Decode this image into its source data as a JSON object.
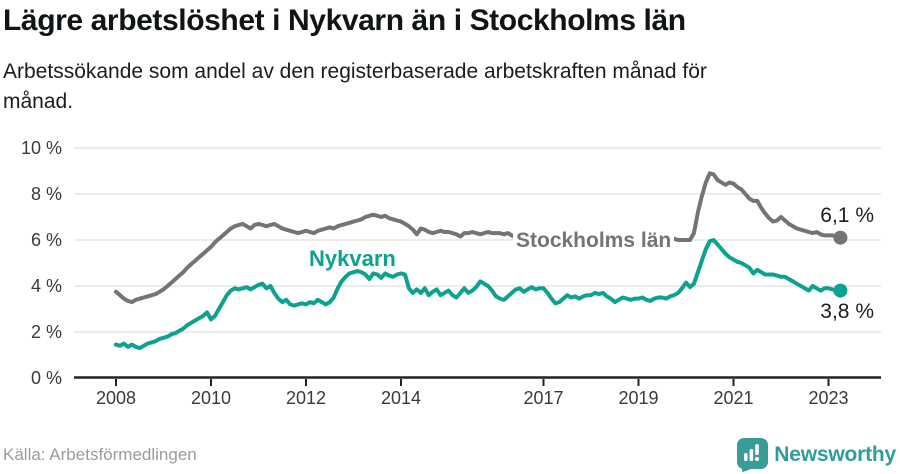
{
  "header": {
    "title": "Lägre arbetslöshet i Nykvarn än i Stockholms län",
    "subtitle_line1": "Arbetssökande som andel av den registerbaserade arbetskraften månad för",
    "subtitle_line2": "månad."
  },
  "footer": {
    "source": "Källa: Arbetsförmedlingen",
    "brand": "Newsworthy"
  },
  "colors": {
    "nykvarn_line": "#0da28f",
    "stockholm_line": "#737378",
    "gridline": "#e0e0e0",
    "axis": "#222222",
    "brand_teal": "#2f9e99",
    "tick_text": "#3a3a3a",
    "value_text": "#1c1c1c"
  },
  "chart_data": {
    "type": "line",
    "title": "Lägre arbetslöshet i Nykvarn än i Stockholms län",
    "subtitle": "Arbetssökande som andel av den registerbaserade arbetskraften månad för månad.",
    "unit": "%",
    "frequency": "monthly",
    "x_start": "2008-01",
    "x_end": "2023-04",
    "ylim": [
      0,
      10
    ],
    "grid": true,
    "legend_position": "inline-labels",
    "y_axis": {
      "ticks": [
        {
          "value": 0,
          "label": "0 %"
        },
        {
          "value": 2,
          "label": "2 %"
        },
        {
          "value": 4,
          "label": "4 %"
        },
        {
          "value": 6,
          "label": "6 %"
        },
        {
          "value": 8,
          "label": "8 %"
        },
        {
          "value": 10,
          "label": "10 %"
        }
      ]
    },
    "x_axis": {
      "ticks": [
        {
          "year": 2008,
          "label": "2008"
        },
        {
          "year": 2010,
          "label": "2010"
        },
        {
          "year": 2012,
          "label": "2012"
        },
        {
          "year": 2014,
          "label": "2014"
        },
        {
          "year": 2017,
          "label": "2017"
        },
        {
          "year": 2019,
          "label": "2019"
        },
        {
          "year": 2021,
          "label": "2021"
        },
        {
          "year": 2023,
          "label": "2023"
        }
      ]
    },
    "series": [
      {
        "id": "stockholms-lan",
        "name": "Stockholms län",
        "color": "#737378",
        "end_label": "6,1 %",
        "end_value": 6.1,
        "values": [
          3.75,
          3.6,
          3.45,
          3.35,
          3.3,
          3.4,
          3.45,
          3.5,
          3.55,
          3.6,
          3.65,
          3.75,
          3.85,
          4.0,
          4.15,
          4.3,
          4.45,
          4.6,
          4.8,
          4.95,
          5.1,
          5.25,
          5.4,
          5.55,
          5.7,
          5.9,
          6.05,
          6.2,
          6.35,
          6.5,
          6.6,
          6.65,
          6.7,
          6.6,
          6.5,
          6.65,
          6.7,
          6.65,
          6.6,
          6.65,
          6.7,
          6.6,
          6.5,
          6.45,
          6.4,
          6.35,
          6.3,
          6.35,
          6.4,
          6.35,
          6.3,
          6.4,
          6.45,
          6.5,
          6.55,
          6.5,
          6.6,
          6.65,
          6.7,
          6.75,
          6.8,
          6.85,
          6.9,
          7.0,
          7.05,
          7.1,
          7.05,
          7.0,
          7.05,
          6.95,
          6.9,
          6.85,
          6.8,
          6.7,
          6.6,
          6.45,
          6.25,
          6.5,
          6.45,
          6.35,
          6.3,
          6.35,
          6.4,
          6.35,
          6.35,
          6.3,
          6.25,
          6.15,
          6.3,
          6.3,
          6.35,
          6.3,
          6.25,
          6.3,
          6.35,
          6.3,
          6.3,
          6.3,
          6.25,
          6.3,
          6.2,
          6.1,
          6.15,
          6.1,
          6.05,
          6.0,
          6.0,
          6.05,
          6.05,
          6.1,
          6.05,
          6.0,
          6.0,
          6.05,
          6.1,
          6.05,
          6.0,
          6.0,
          6.05,
          6.0,
          6.0,
          6.05,
          6.0,
          5.95,
          6.0,
          6.05,
          6.0,
          5.95,
          6.0,
          6.0,
          6.05,
          6.0,
          6.0,
          6.05,
          6.0,
          6.0,
          6.05,
          6.1,
          6.05,
          6.0,
          6.0,
          6.05,
          6.0,
          6.0,
          6.0,
          6.0,
          6.3,
          7.2,
          7.9,
          8.5,
          8.9,
          8.85,
          8.6,
          8.5,
          8.4,
          8.5,
          8.45,
          8.3,
          8.2,
          8.0,
          7.8,
          7.7,
          7.7,
          7.4,
          7.15,
          6.95,
          6.8,
          6.85,
          7.0,
          6.85,
          6.7,
          6.6,
          6.5,
          6.45,
          6.4,
          6.35,
          6.3,
          6.35,
          6.25,
          6.2,
          6.2,
          6.2,
          6.15,
          6.1
        ]
      },
      {
        "id": "nykvarn",
        "name": "Nykvarn",
        "color": "#0da28f",
        "end_label": "3,8 %",
        "end_value": 3.8,
        "values": [
          1.45,
          1.4,
          1.5,
          1.35,
          1.45,
          1.35,
          1.3,
          1.4,
          1.5,
          1.55,
          1.6,
          1.7,
          1.75,
          1.8,
          1.9,
          1.95,
          2.05,
          2.15,
          2.3,
          2.4,
          2.5,
          2.6,
          2.7,
          2.85,
          2.55,
          2.7,
          3.0,
          3.3,
          3.6,
          3.8,
          3.9,
          3.85,
          3.9,
          3.95,
          3.85,
          3.95,
          4.05,
          4.1,
          3.9,
          4.0,
          3.7,
          3.45,
          3.3,
          3.4,
          3.2,
          3.15,
          3.2,
          3.25,
          3.2,
          3.3,
          3.25,
          3.4,
          3.3,
          3.2,
          3.3,
          3.5,
          3.9,
          4.2,
          4.4,
          4.55,
          4.6,
          4.65,
          4.6,
          4.5,
          4.3,
          4.55,
          4.5,
          4.35,
          4.55,
          4.45,
          4.4,
          4.5,
          4.55,
          4.5,
          3.9,
          3.7,
          3.85,
          3.7,
          3.9,
          3.6,
          3.75,
          3.85,
          3.6,
          3.7,
          3.8,
          3.6,
          3.5,
          3.7,
          3.9,
          3.7,
          3.8,
          3.95,
          4.2,
          4.1,
          4.0,
          3.8,
          3.55,
          3.45,
          3.4,
          3.55,
          3.7,
          3.85,
          3.9,
          3.75,
          3.85,
          3.95,
          3.85,
          3.9,
          3.9,
          3.7,
          3.45,
          3.25,
          3.3,
          3.45,
          3.6,
          3.5,
          3.55,
          3.45,
          3.55,
          3.6,
          3.6,
          3.7,
          3.65,
          3.7,
          3.55,
          3.45,
          3.3,
          3.4,
          3.5,
          3.45,
          3.4,
          3.45,
          3.45,
          3.5,
          3.4,
          3.35,
          3.45,
          3.5,
          3.5,
          3.45,
          3.55,
          3.6,
          3.7,
          3.9,
          4.15,
          3.95,
          4.1,
          4.6,
          5.1,
          5.6,
          5.95,
          6.0,
          5.8,
          5.6,
          5.4,
          5.25,
          5.15,
          5.05,
          5.0,
          4.9,
          4.8,
          4.55,
          4.7,
          4.6,
          4.5,
          4.5,
          4.5,
          4.45,
          4.4,
          4.4,
          4.3,
          4.2,
          4.1,
          4.0,
          3.9,
          3.8,
          4.0,
          3.9,
          3.8,
          3.9,
          3.9,
          3.85,
          3.8,
          3.8
        ]
      }
    ]
  }
}
